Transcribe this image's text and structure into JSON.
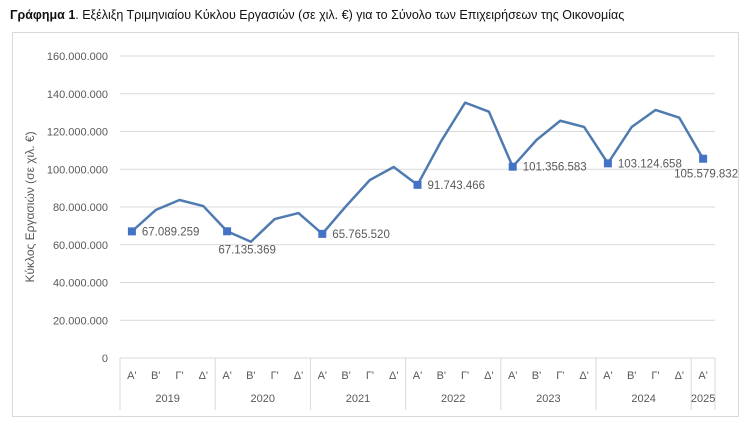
{
  "title": {
    "bold": "Γράφημα 1",
    "rest": ". Εξέλιξη Τριμηνιαίου Κύκλου Εργασιών (σε χιλ. €) για το Σύνολο των Επιχειρήσεων της Οικονομίας"
  },
  "chart_data": {
    "type": "line",
    "title": "Γράφημα 1. Εξέλιξη Τριμηνιαίου Κύκλου Εργασιών (σε χιλ. €) για το Σύνολο των Επιχειρήσεων της Οικονομίας",
    "ylabel": "Κύκλος Εργασιών (σε χιλ. €)",
    "xlabel": "",
    "ylim": [
      0,
      160000000
    ],
    "yticks": [
      "0",
      "20.000.000",
      "40.000.000",
      "60.000.000",
      "80.000.000",
      "100.000.000",
      "120.000.000",
      "140.000.000",
      "160.000.000"
    ],
    "grid": true,
    "color": "#4f7bb0",
    "marker_color": "#4472c4",
    "years": [
      {
        "label": "2019",
        "quarters": [
          "Α'",
          "Β'",
          "Γ'",
          "Δ'"
        ]
      },
      {
        "label": "2020",
        "quarters": [
          "Α'",
          "Β'",
          "Γ'",
          "Δ'"
        ]
      },
      {
        "label": "2021",
        "quarters": [
          "Α'",
          "Β'",
          "Γ'",
          "Δ'"
        ]
      },
      {
        "label": "2022",
        "quarters": [
          "Α'",
          "Β'",
          "Γ'",
          "Δ'"
        ]
      },
      {
        "label": "2023",
        "quarters": [
          "Α'",
          "Β'",
          "Γ'",
          "Δ'"
        ]
      },
      {
        "label": "2024",
        "quarters": [
          "Α'",
          "Β'",
          "Γ'",
          "Δ'"
        ]
      },
      {
        "label": "2025",
        "quarters": [
          "Α'"
        ]
      }
    ],
    "values": [
      67089259,
      78400000,
      83700000,
      80500000,
      67135369,
      61600000,
      73600000,
      76800000,
      65765520,
      80500000,
      94300000,
      101200000,
      91743466,
      115000000,
      135300000,
      130500000,
      101356583,
      115500000,
      125700000,
      122400000,
      103124658,
      122400000,
      131400000,
      127300000,
      105579832
    ],
    "data_labels": [
      {
        "index": 0,
        "text": "67.089.259",
        "pos": "right"
      },
      {
        "index": 4,
        "text": "67.135.369",
        "pos": "below"
      },
      {
        "index": 8,
        "text": "65.765.520",
        "pos": "right"
      },
      {
        "index": 12,
        "text": "91.743.466",
        "pos": "right"
      },
      {
        "index": 16,
        "text": "101.356.583",
        "pos": "right"
      },
      {
        "index": 20,
        "text": "103.124.658",
        "pos": "right"
      },
      {
        "index": 24,
        "text": "105.579.832",
        "pos": "below-left"
      }
    ]
  }
}
